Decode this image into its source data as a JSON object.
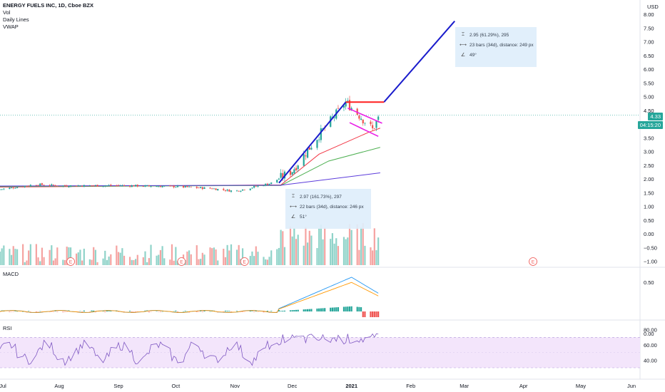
{
  "legend": {
    "title": "ENERGY FUELS INC, 1D, Cboe BZX",
    "items": [
      "Vol",
      "Daily Lines",
      "VWAP"
    ]
  },
  "currency": "USD",
  "last_price": "4.33",
  "countdown": "04:15:20",
  "price_axis": [
    "8.00",
    "7.50",
    "7.00",
    "6.50",
    "6.00",
    "5.50",
    "5.00",
    "4.50",
    "4.00",
    "3.50",
    "3.00",
    "2.50",
    "2.00",
    "1.50",
    "1.00",
    "0.50",
    "0.00",
    "−0.50",
    "−1.00"
  ],
  "macd_axis": [
    "0.50",
    "0.00"
  ],
  "rsi_axis": [
    "80.00",
    "60.00",
    "40.00"
  ],
  "time_axis": [
    "Jul",
    "Aug",
    "Sep",
    "Oct",
    "Nov",
    "Dec",
    "2021",
    "Feb",
    "Mar",
    "Apr",
    "May",
    "Jun"
  ],
  "pane_titles": {
    "macd": "MACD",
    "rsi": "RSI"
  },
  "earnings_marker": "E",
  "measure_top": {
    "price_range": "2.95 (61.29%), 295",
    "bars_range": "23 bars (34d), distance: 249 px",
    "angle": "49°"
  },
  "measure_bottom": {
    "price_range": "2.97 (161.73%), 297",
    "bars_range": "22 bars (34d), distance: 246 px",
    "angle": "51°"
  },
  "colors": {
    "up": "#26a69a",
    "down": "#ef5350",
    "trend_blue": "#1a1ccc",
    "flag_magenta": "#e91ee6",
    "top_red": "#ff1f1f",
    "ma_red": "#f23645",
    "ma_green": "#4caf50",
    "vwap_purple": "#5b3bdb",
    "macd_line": "#2196f3",
    "signal_line": "#ff9800",
    "rsi_line": "#7e57c2",
    "rsi_band": "#f3e5fb",
    "price_tag": "#26a69a"
  },
  "chart_data": {
    "type": "candlestick",
    "title": "ENERGY FUELS INC, 1D, Cboe BZX",
    "y_unit": "USD",
    "ylim": [
      -1.0,
      8.0
    ],
    "x_range": [
      "2020-07-01",
      "2021-06-01"
    ],
    "x_ticks": [
      "Jul",
      "Aug",
      "Sep",
      "Oct",
      "Nov",
      "Dec",
      "2021",
      "Feb",
      "Mar",
      "Apr",
      "May",
      "Jun"
    ],
    "last_price": 4.33,
    "price_segments": [
      {
        "date": "2020-07-01",
        "close": 1.62
      },
      {
        "date": "2020-07-20",
        "close": 1.8
      },
      {
        "date": "2020-08-01",
        "close": 1.75
      },
      {
        "date": "2020-09-01",
        "close": 1.76
      },
      {
        "date": "2020-10-01",
        "close": 1.72
      },
      {
        "date": "2020-10-20",
        "close": 1.65
      },
      {
        "date": "2020-11-01",
        "close": 1.55
      },
      {
        "date": "2020-11-20",
        "close": 1.85
      },
      {
        "date": "2020-12-01",
        "close": 2.3
      },
      {
        "date": "2020-12-15",
        "close": 3.6
      },
      {
        "date": "2020-12-29",
        "close": 4.8
      },
      {
        "date": "2021-01-06",
        "close": 4.25
      },
      {
        "date": "2021-01-12",
        "close": 3.8
      },
      {
        "date": "2021-01-16",
        "close": 4.33
      }
    ],
    "moving_averages": [
      {
        "color": "red",
        "points": [
          [
            "2020-07-01",
            1.7
          ],
          [
            "2020-11-25",
            1.78
          ],
          [
            "2020-12-15",
            2.9
          ],
          [
            "2021-01-10",
            3.7
          ],
          [
            "2021-01-16",
            3.85
          ]
        ]
      },
      {
        "color": "green",
        "points": [
          [
            "2020-07-01",
            1.72
          ],
          [
            "2020-11-25",
            1.76
          ],
          [
            "2020-12-20",
            2.65
          ],
          [
            "2021-01-16",
            3.15
          ]
        ]
      },
      {
        "color": "purple",
        "points": [
          [
            "2020-07-01",
            1.74
          ],
          [
            "2020-11-25",
            1.77
          ],
          [
            "2021-01-16",
            2.22
          ]
        ]
      }
    ],
    "drawings": {
      "trend_line": {
        "from": [
          "2020-11-24",
          1.85
        ],
        "to": [
          "2020-12-29",
          4.8
        ]
      },
      "projection_line": {
        "from": [
          "2021-01-18",
          4.8
        ],
        "to": [
          "2021-02-24",
          7.75
        ]
      },
      "top_line": {
        "from": [
          "2020-12-29",
          4.8
        ],
        "to": [
          "2021-01-18",
          4.8
        ]
      },
      "flag_upper": {
        "from": [
          "2020-12-30",
          4.58
        ],
        "to": [
          "2021-01-17",
          4.03
        ]
      },
      "flag_lower": {
        "from": [
          "2020-12-31",
          4.05
        ],
        "to": [
          "2021-01-15",
          3.55
        ]
      }
    },
    "measurements": [
      {
        "change": 2.95,
        "change_pct": 61.29,
        "ticks": 295,
        "bars": 23,
        "days": 34,
        "angle_deg": 49
      },
      {
        "change": 2.97,
        "change_pct": 161.73,
        "ticks": 297,
        "bars": 22,
        "days": 34,
        "angle_deg": 51
      }
    ],
    "macd": {
      "ylim": [
        -0.1,
        0.7
      ],
      "ticks": [
        0.5,
        0.0
      ]
    },
    "rsi": {
      "ylim": [
        15,
        90
      ],
      "ticks": [
        80,
        60,
        40
      ],
      "band": [
        30,
        70
      ]
    }
  }
}
